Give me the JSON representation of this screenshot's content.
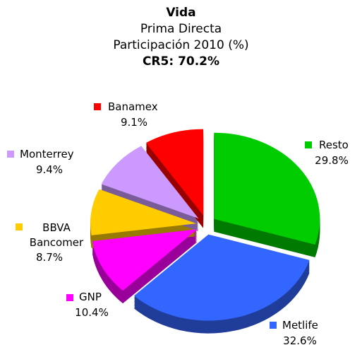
{
  "chart_data": {
    "type": "pie",
    "title": "Vida",
    "subtitle": [
      "Prima Directa",
      "Participación 2010 (%)"
    ],
    "annotation": "CR5: 70.2%",
    "categories": [
      "Resto",
      "Metlife",
      "GNP",
      "BBVA Bancomer",
      "Monterrey",
      "Banamex"
    ],
    "values": [
      29.8,
      32.6,
      10.4,
      8.7,
      9.4,
      9.1
    ],
    "value_labels": [
      "29.8%",
      "32.6%",
      "10.4%",
      "8.7%",
      "9.4%",
      "9.1%"
    ],
    "colors": [
      "#00cc00",
      "#3366ff",
      "#ff00ff",
      "#ffcc00",
      "#cc99ff",
      "#ff0000"
    ]
  }
}
